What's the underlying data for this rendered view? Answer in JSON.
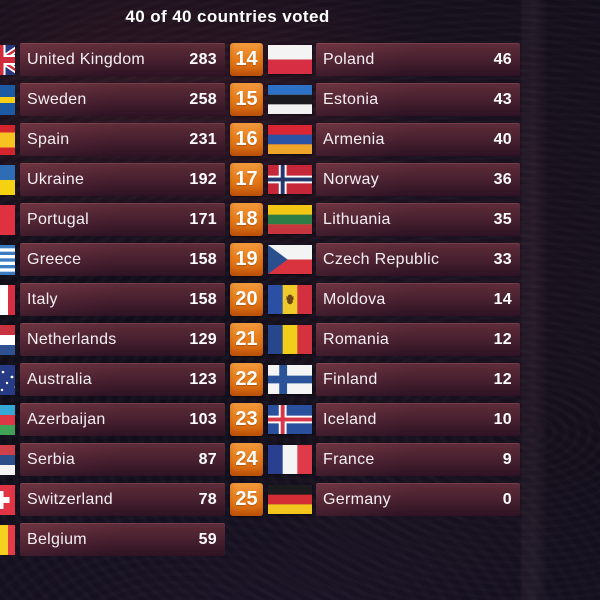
{
  "header": {
    "title": "40 of 40 countries voted"
  },
  "colors": {
    "rank_badge": "#e87d18",
    "row_bar_top": "#5f2d3a",
    "row_bar_bottom": "#2e1324",
    "background": "#110e1a",
    "text": "#ffffff"
  },
  "scoreboard": {
    "left_column": [
      {
        "country": "United Kingdom",
        "points": 283,
        "flag": "united-kingdom"
      },
      {
        "country": "Sweden",
        "points": 258,
        "flag": "sweden"
      },
      {
        "country": "Spain",
        "points": 231,
        "flag": "spain"
      },
      {
        "country": "Ukraine",
        "points": 192,
        "flag": "ukraine"
      },
      {
        "country": "Portugal",
        "points": 171,
        "flag": "portugal"
      },
      {
        "country": "Greece",
        "points": 158,
        "flag": "greece"
      },
      {
        "country": "Italy",
        "points": 158,
        "flag": "italy"
      },
      {
        "country": "Netherlands",
        "points": 129,
        "flag": "netherlands"
      },
      {
        "country": "Australia",
        "points": 123,
        "flag": "australia"
      },
      {
        "country": "Azerbaijan",
        "points": 103,
        "flag": "azerbaijan"
      },
      {
        "country": "Serbia",
        "points": 87,
        "flag": "serbia"
      },
      {
        "country": "Switzerland",
        "points": 78,
        "flag": "switzerland"
      },
      {
        "country": "Belgium",
        "points": 59,
        "flag": "belgium"
      }
    ],
    "right_column": [
      {
        "rank": 14,
        "country": "Poland",
        "points": 46,
        "flag": "poland"
      },
      {
        "rank": 15,
        "country": "Estonia",
        "points": 43,
        "flag": "estonia"
      },
      {
        "rank": 16,
        "country": "Armenia",
        "points": 40,
        "flag": "armenia"
      },
      {
        "rank": 17,
        "country": "Norway",
        "points": 36,
        "flag": "norway"
      },
      {
        "rank": 18,
        "country": "Lithuania",
        "points": 35,
        "flag": "lithuania"
      },
      {
        "rank": 19,
        "country": "Czech Republic",
        "points": 33,
        "flag": "czech-republic"
      },
      {
        "rank": 20,
        "country": "Moldova",
        "points": 14,
        "flag": "moldova"
      },
      {
        "rank": 21,
        "country": "Romania",
        "points": 12,
        "flag": "romania"
      },
      {
        "rank": 22,
        "country": "Finland",
        "points": 12,
        "flag": "finland"
      },
      {
        "rank": 23,
        "country": "Iceland",
        "points": 10,
        "flag": "iceland"
      },
      {
        "rank": 24,
        "country": "France",
        "points": 9,
        "flag": "france"
      },
      {
        "rank": 25,
        "country": "Germany",
        "points": 0,
        "flag": "germany"
      }
    ]
  }
}
